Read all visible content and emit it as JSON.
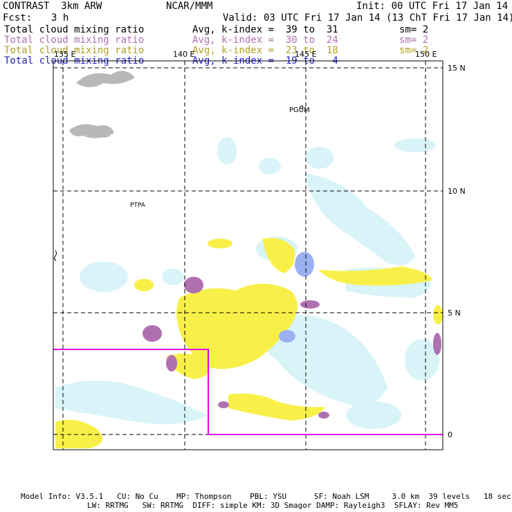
{
  "header": {
    "title": "CONTRAST  3km ARW",
    "org": "NCAR/MMM",
    "init": "Init: 00 UTC Fri 17 Jan 14",
    "fcst_label": "Fcst:",
    "fcst_value": "3 h",
    "valid": "Valid: 03 UTC Fri 17 Jan 14 (13 ChT Fri 17 Jan 14)"
  },
  "fields": [
    {
      "name": "Total cloud mixing ratio",
      "avg": "Avg, k-index =  39 to  31",
      "sm": "sm= 2",
      "color": "#000000"
    },
    {
      "name": "Total cloud mixing ratio",
      "avg": "Avg, k-index =  30 to  24",
      "sm": "sm= 2",
      "color": "#b070b0"
    },
    {
      "name": "Total cloud mixing ratio",
      "avg": "Avg, k-index =  23 to  18",
      "sm": "sm= 2",
      "color": "#b0a020"
    },
    {
      "name": "Total cloud mixing ratio",
      "avg": "Avg, k-index =  19 to   4",
      "sm": "",
      "color": "#2020c0"
    }
  ],
  "map": {
    "lon_labels": [
      "135 E",
      "140 E",
      "145 E",
      "150 E"
    ],
    "lat_labels": [
      "15 N",
      "10 N",
      "5 N",
      "0"
    ],
    "stations": [
      "PGUM",
      "PTPA"
    ],
    "colors": {
      "frame": "#000000",
      "grid": "#000000",
      "box": "#e000e0",
      "cloud_light": "#d8f4f8",
      "cloud_yellow": "#f8f048",
      "cloud_purple": "#b070b0",
      "cloud_blue": "#9ab0f0",
      "land_gray": "#b8b8b8"
    }
  },
  "footer": {
    "line1": "Model Info: V3.5.1   CU: No Cu    MP: Thompson    PBL: YSU      SF: Noah LSM     3.0 km  39 levels   18 sec",
    "line2": "LW: RRTMG   SW: RRTMG  DIFF: simple KM: 3D Smagor DAMP: Rayleigh3  SFLAY: Rev MM5"
  }
}
